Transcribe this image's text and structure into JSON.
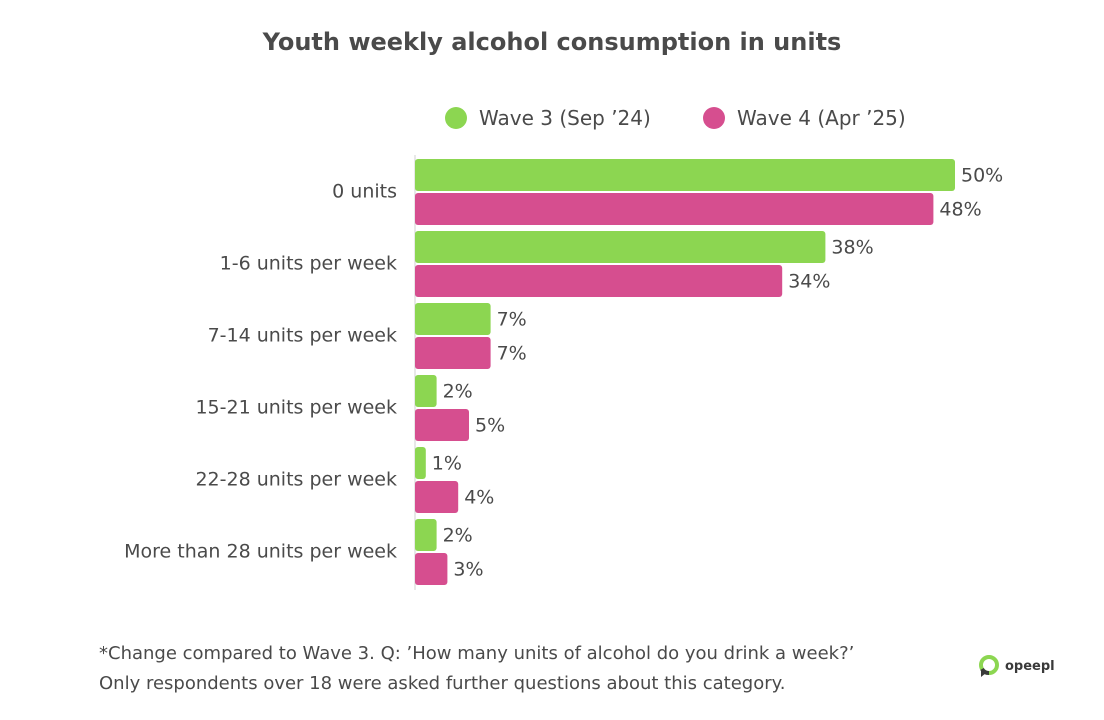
{
  "chart_data": {
    "type": "bar",
    "orientation": "horizontal",
    "title": "Youth weekly alcohol consumption in units",
    "categories": [
      "0 units",
      "1-6 units per week",
      "7-14 units per week",
      "15-21 units per week",
      "22-28 units per week",
      "More than 28 units per week"
    ],
    "series": [
      {
        "name": "Wave 3 (Sep ’24)",
        "color": "#8cd651",
        "values": [
          50,
          38,
          7,
          2,
          1,
          2
        ]
      },
      {
        "name": "Wave 4 (Apr ’25)",
        "color": "#d64e8f",
        "values": [
          48,
          34,
          7,
          5,
          4,
          3
        ]
      }
    ],
    "value_suffix": "%",
    "xlim": [
      0,
      50
    ],
    "xlabel": "",
    "ylabel": "",
    "grid": false,
    "legend_position": "top"
  },
  "footnotes": [
    "*Change compared to Wave 3. Q: ’How many units of alcohol do you drink a week?’",
    "Only respondents over 18 were asked further questions about this category."
  ],
  "brand": {
    "name": "opeepl",
    "icon": "opeepl-logo-icon"
  }
}
